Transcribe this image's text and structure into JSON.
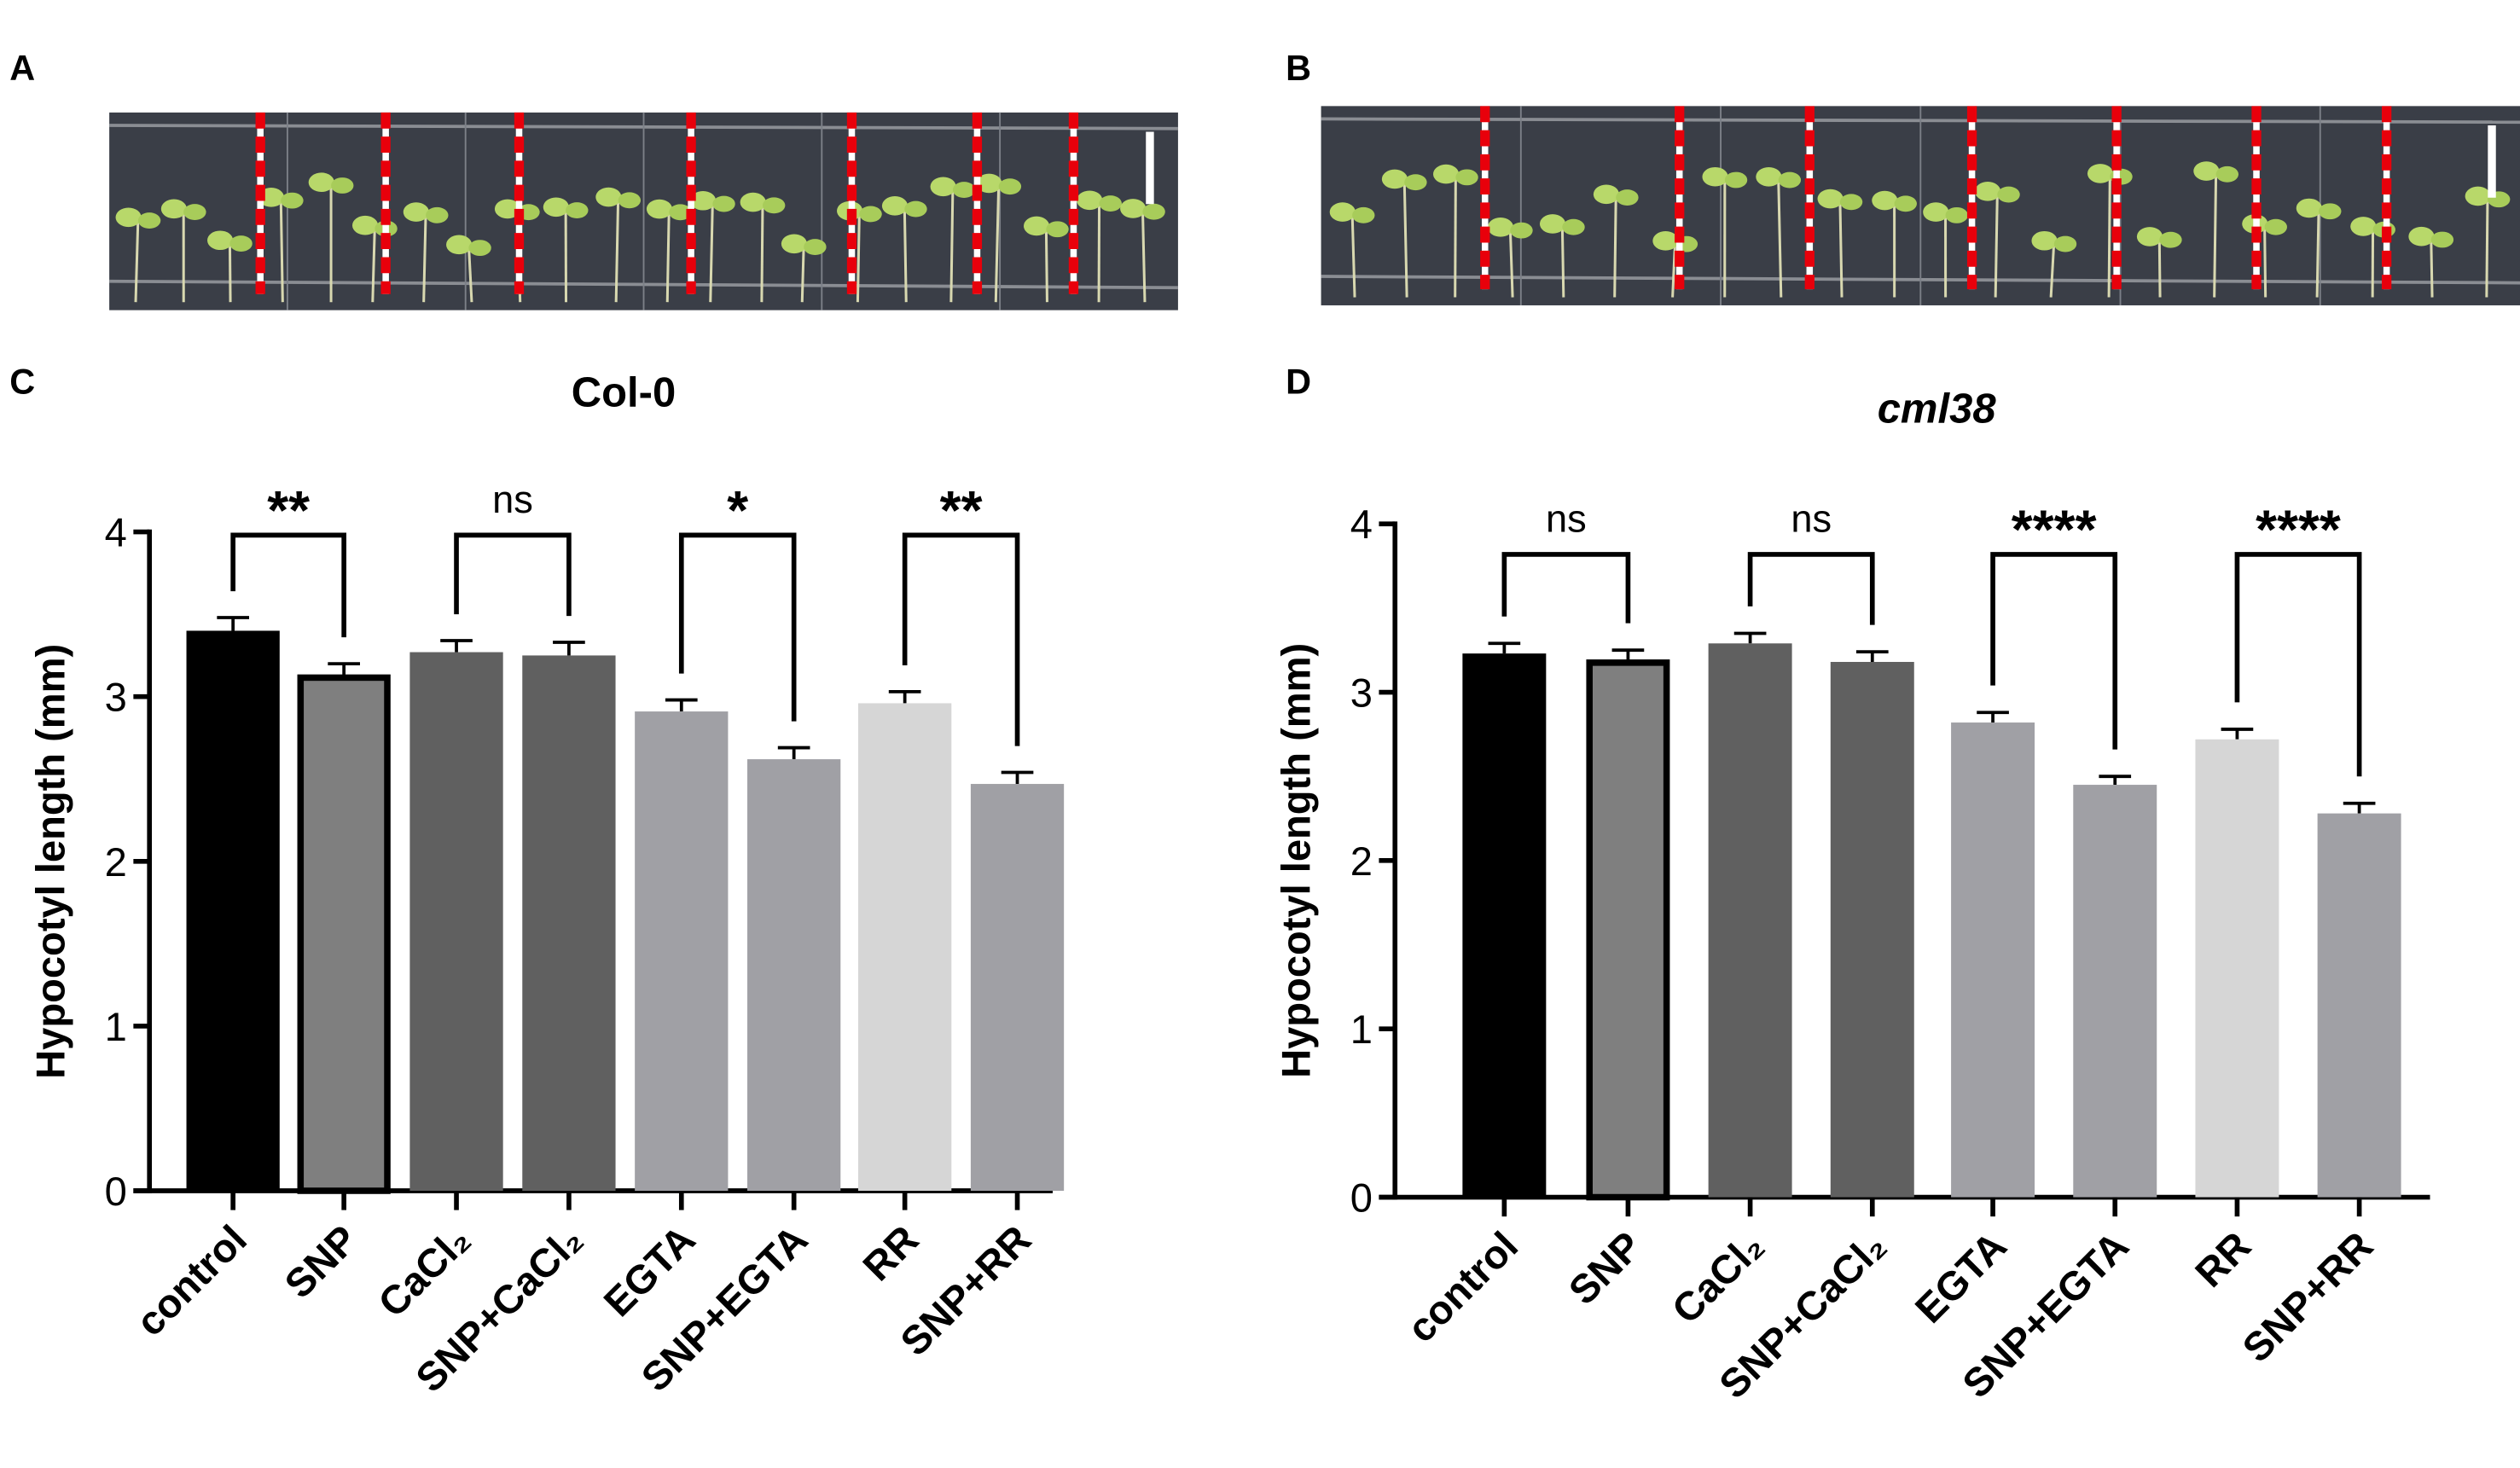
{
  "panels": {
    "a": "A",
    "b": "B",
    "c": "C",
    "d": "D"
  },
  "photo_scale_bar": "scale-bar",
  "colors": {
    "control": "#000000",
    "SNP": "#7f7f7f",
    "CaCl2": "#606060",
    "EGTA": "#a0a0a5",
    "RR": "#d6d6d6",
    "plate": "#3a3e47",
    "seedling": "#b8d86a",
    "marker": "#e8000b"
  },
  "chart_data": [
    {
      "type": "bar",
      "title": "Col-0",
      "title_italic": false,
      "ylabel": "Hypocotyl length (mm)",
      "xlabel": "",
      "ylim": [
        0,
        4
      ],
      "yticks": [
        "0",
        "1",
        "2",
        "3",
        "4"
      ],
      "categories": [
        "control",
        "SNP",
        "CaCl₂",
        "SNP+CaCl₂",
        "EGTA",
        "SNP+EGTA",
        "RR",
        "SNP+RR"
      ],
      "values": [
        3.4,
        3.13,
        3.27,
        3.25,
        2.91,
        2.62,
        2.96,
        2.47
      ],
      "errors": [
        0.08,
        0.07,
        0.07,
        0.08,
        0.07,
        0.07,
        0.07,
        0.07
      ],
      "bar_colors": [
        "#000000",
        "#7f7f7f",
        "#606060",
        "#606060",
        "#a0a0a5",
        "#a0a0a5",
        "#d6d6d6",
        "#a0a0a5"
      ],
      "comparisons": [
        {
          "pair": [
            0,
            1
          ],
          "label": "**"
        },
        {
          "pair": [
            2,
            3
          ],
          "label": "ns"
        },
        {
          "pair": [
            4,
            5
          ],
          "label": "*"
        },
        {
          "pair": [
            6,
            7
          ],
          "label": "**"
        }
      ],
      "grid": false
    },
    {
      "type": "bar",
      "title": "cml38",
      "title_italic": true,
      "ylabel": "Hypocotyl length (mm)",
      "xlabel": "",
      "ylim": [
        0,
        4
      ],
      "yticks": [
        "0",
        "1",
        "2",
        "3",
        "4"
      ],
      "categories": [
        "control",
        "SNP",
        "CaCl₂",
        "SNP+CaCl₂",
        "EGTA",
        "SNP+EGTA",
        "RR",
        "SNP+RR"
      ],
      "values": [
        3.23,
        3.19,
        3.29,
        3.18,
        2.82,
        2.45,
        2.72,
        2.28
      ],
      "errors": [
        0.06,
        0.06,
        0.06,
        0.06,
        0.06,
        0.05,
        0.06,
        0.06
      ],
      "bar_colors": [
        "#000000",
        "#7f7f7f",
        "#606060",
        "#606060",
        "#a0a0a5",
        "#a0a0a5",
        "#d6d6d6",
        "#a0a0a5"
      ],
      "comparisons": [
        {
          "pair": [
            0,
            1
          ],
          "label": "ns"
        },
        {
          "pair": [
            2,
            3
          ],
          "label": "ns"
        },
        {
          "pair": [
            4,
            5
          ],
          "label": "****"
        },
        {
          "pair": [
            6,
            7
          ],
          "label": "****"
        }
      ],
      "grid": false
    }
  ]
}
